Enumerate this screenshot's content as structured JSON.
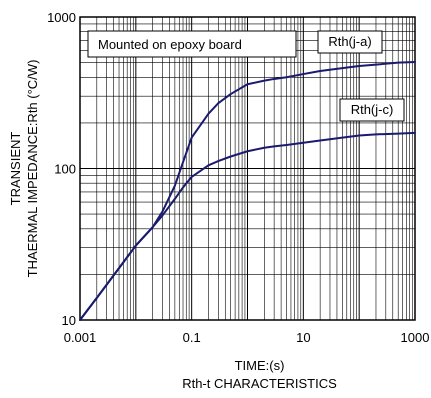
{
  "chart_data": {
    "type": "line",
    "title": "",
    "caption": "Rth-t CHARACTERISTICS",
    "xlabel": "TIME:(s)",
    "ylabel_lines": [
      "TRANSIENT",
      "THAERMAL IMPEDANCE:Rth (°C/W)"
    ],
    "x_scale": "log",
    "y_scale": "log",
    "xlim": [
      0.001,
      1000
    ],
    "ylim": [
      10,
      1000
    ],
    "x_ticks": [
      0.001,
      0.1,
      10,
      1000
    ],
    "x_tick_labels": [
      "0.001",
      "0.1",
      "10",
      "1000"
    ],
    "y_ticks": [
      10,
      100,
      1000
    ],
    "y_tick_labels": [
      "10",
      "100",
      "1000"
    ],
    "grid": true,
    "annotation": "Mounted on epoxy board",
    "line_color": "#1a1a6e",
    "series": [
      {
        "name": "Rth(j-a)",
        "x": [
          0.001,
          0.002,
          0.005,
          0.01,
          0.02,
          0.03,
          0.05,
          0.07,
          0.1,
          0.2,
          0.3,
          0.5,
          1,
          2,
          3,
          5,
          10,
          20,
          50,
          100,
          200,
          500,
          1000
        ],
        "y": [
          10,
          14,
          22,
          31,
          41,
          52,
          77,
          110,
          160,
          230,
          270,
          310,
          360,
          380,
          390,
          400,
          420,
          440,
          460,
          475,
          485,
          500,
          505
        ]
      },
      {
        "name": "Rth(j-c)",
        "x": [
          0.001,
          0.002,
          0.005,
          0.01,
          0.02,
          0.03,
          0.05,
          0.07,
          0.1,
          0.2,
          0.3,
          0.5,
          1,
          2,
          3,
          5,
          10,
          20,
          50,
          100,
          200,
          500,
          1000
        ],
        "y": [
          10,
          14,
          22,
          31,
          41,
          49,
          63,
          75,
          88,
          105,
          112,
          120,
          130,
          137,
          140,
          143,
          148,
          153,
          160,
          165,
          168,
          170,
          172
        ]
      }
    ]
  }
}
